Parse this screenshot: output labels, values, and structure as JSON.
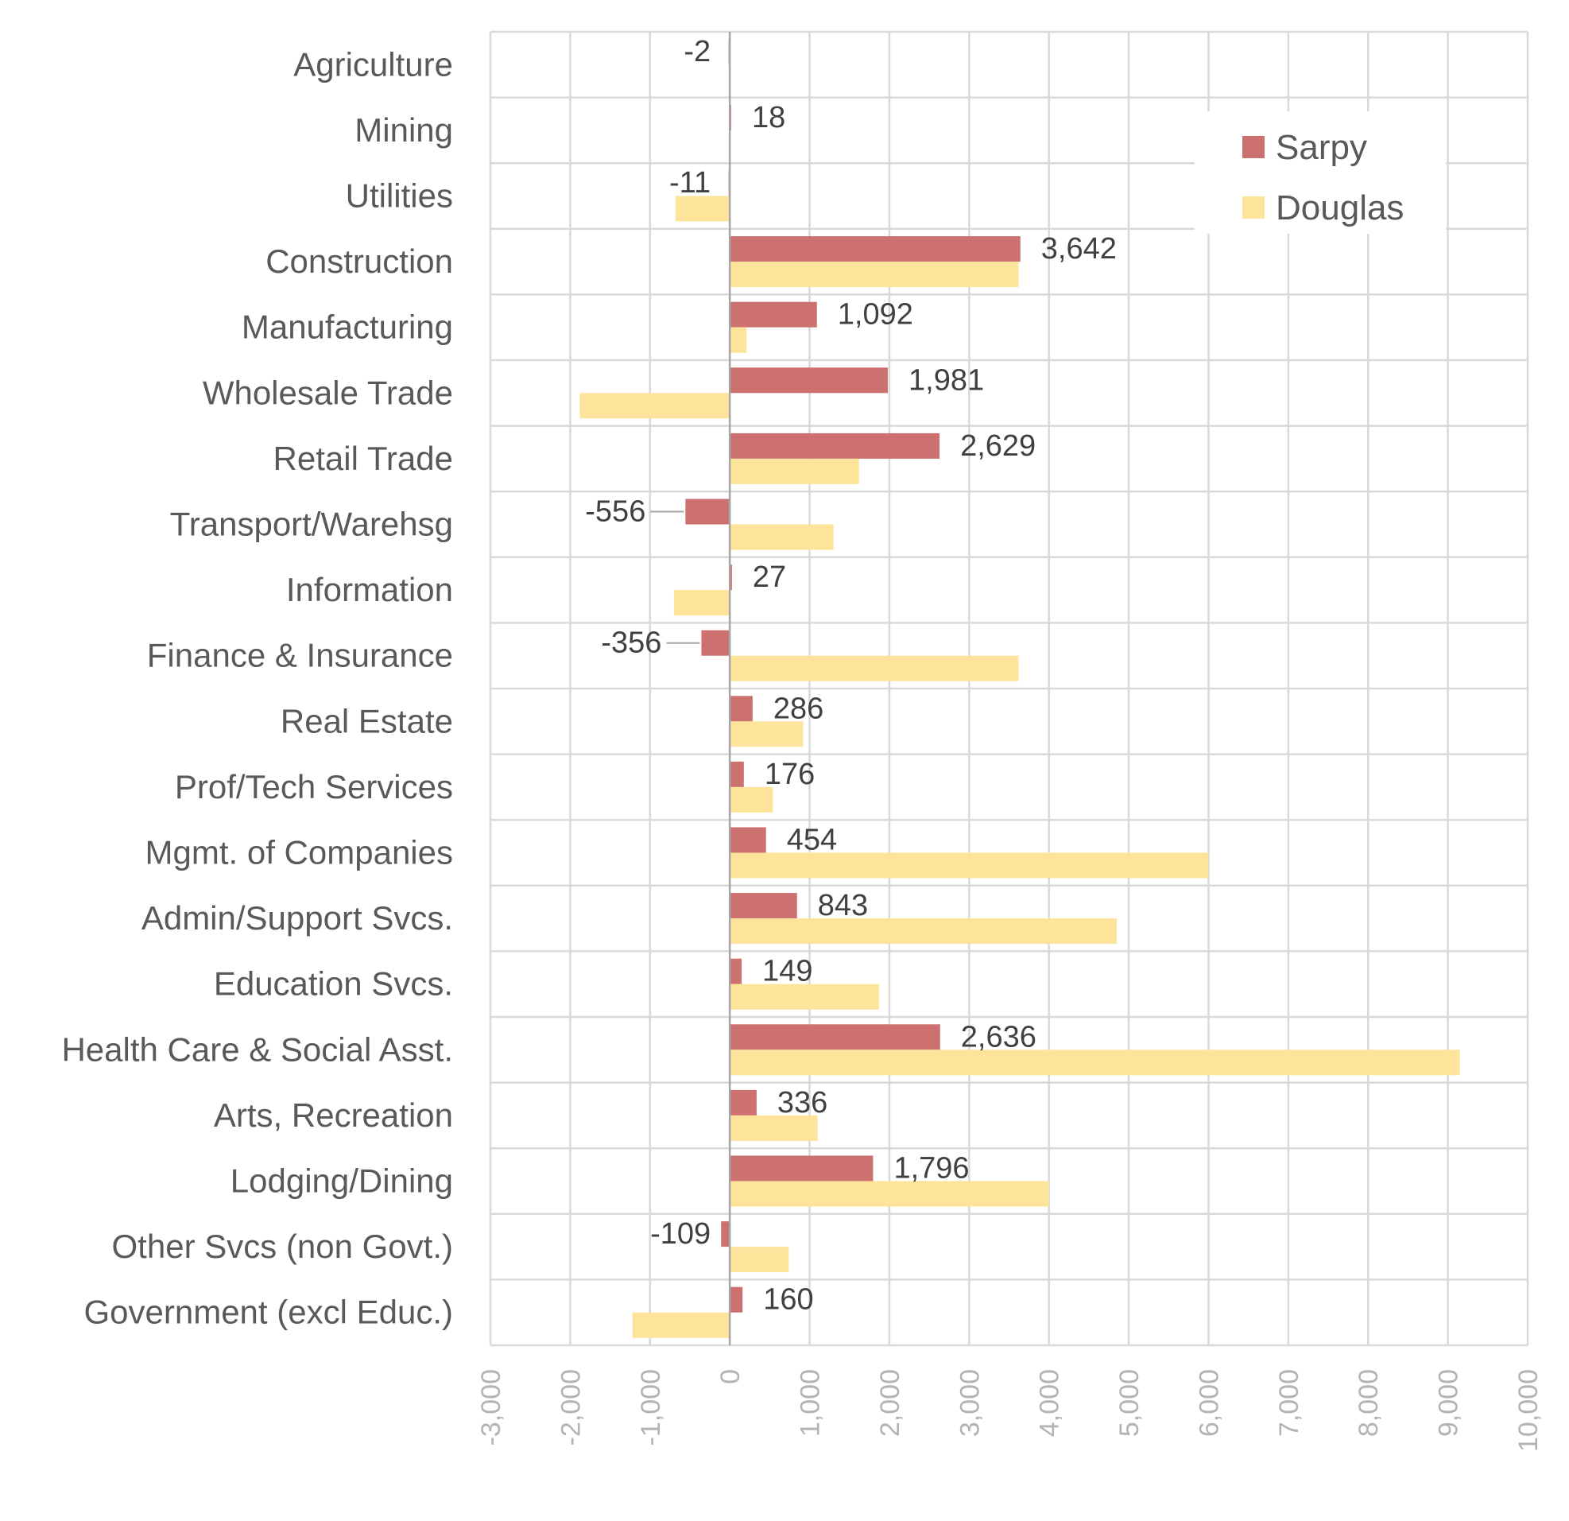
{
  "chart_data": {
    "type": "bar",
    "orientation": "horizontal",
    "title": "",
    "xlabel": "",
    "ylabel": "",
    "xlim": [
      -3000,
      10000
    ],
    "x_ticks": [
      -3000,
      -2000,
      -1000,
      0,
      1000,
      2000,
      3000,
      4000,
      5000,
      6000,
      7000,
      8000,
      9000,
      10000
    ],
    "x_tick_labels": [
      "-3,000",
      "-2,000",
      "-1,000",
      "0",
      "1,000",
      "2,000",
      "3,000",
      "4,000",
      "5,000",
      "6,000",
      "7,000",
      "8,000",
      "9,000",
      "10,000"
    ],
    "grid": true,
    "legend_position": "top-right",
    "categories": [
      "Agriculture",
      "Mining",
      "Utilities",
      "Construction",
      "Manufacturing",
      "Wholesale Trade",
      "Retail Trade",
      "Transport/Warehsg",
      "Information",
      "Finance & Insurance",
      "Real Estate",
      "Prof/Tech Services",
      "Mgmt. of Companies",
      "Admin/Support Svcs.",
      "Education Svcs.",
      "Health Care & Social Asst.",
      "Arts, Recreation",
      "Lodging/Dining",
      "Other Svcs (non Govt.)",
      "Government (excl Educ.)"
    ],
    "series": [
      {
        "name": "Sarpy",
        "color": "#cd7070",
        "values": [
          -2,
          18,
          -11,
          3642,
          1092,
          1981,
          2629,
          -556,
          27,
          -356,
          286,
          176,
          454,
          843,
          149,
          2636,
          336,
          1796,
          -109,
          160
        ],
        "data_labels": [
          "-2",
          "18",
          "-11",
          "3,642",
          "1,092",
          "1,981",
          "2,629",
          "-556",
          "27",
          "-356",
          "286",
          "176",
          "454",
          "843",
          "149",
          "2,636",
          "336",
          "1,796",
          "-109",
          "160"
        ]
      },
      {
        "name": "Douglas",
        "color": "#fde49a",
        "values": [
          0,
          0,
          -680,
          3620,
          210,
          -1880,
          1620,
          1300,
          -700,
          3620,
          920,
          540,
          6000,
          4850,
          1870,
          9150,
          1100,
          4000,
          740,
          -1220
        ]
      }
    ],
    "colors": {
      "grid": "#d9d9d9",
      "zero_line": "#a6a6a6",
      "category_text": "#595959",
      "tick_text": "#b3b3b3",
      "data_label_text": "#404040",
      "leader_line": "#a6a6a6"
    }
  }
}
